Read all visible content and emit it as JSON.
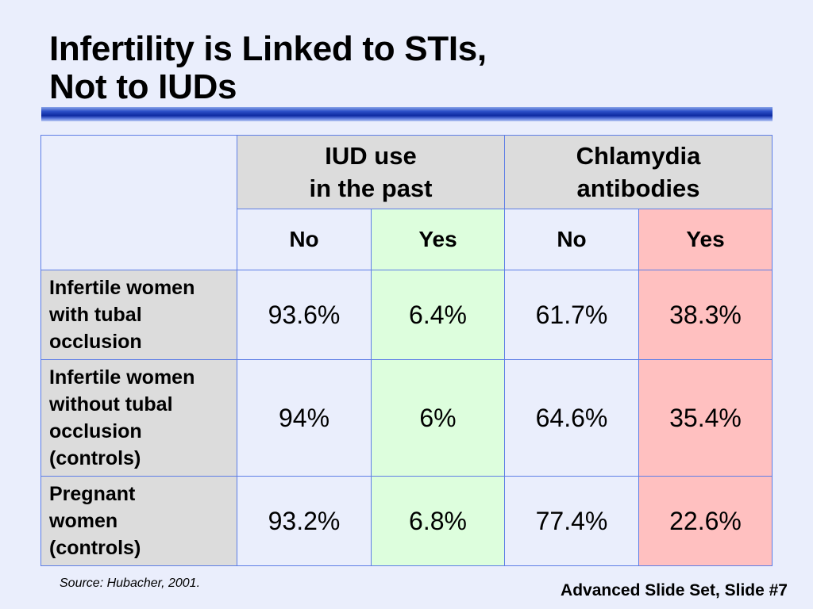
{
  "title": {
    "line1": "Infertility is Linked to STIs,",
    "line2": "Not to IUDs"
  },
  "table": {
    "groups": [
      {
        "line1": "IUD use",
        "line2": "in the past"
      },
      {
        "line1": "Chlamydia",
        "line2": "antibodies"
      }
    ],
    "subheaders": [
      "No",
      "Yes",
      "No",
      "Yes"
    ],
    "rows": [
      {
        "label_lines": [
          "Infertile women",
          "with tubal",
          "occlusion"
        ],
        "values": [
          "93.6%",
          "6.4%",
          "61.7%",
          "38.3%"
        ]
      },
      {
        "label_lines": [
          "Infertile women",
          "without tubal",
          "occlusion",
          "(controls)"
        ],
        "values": [
          "94%",
          "6%",
          "64.6%",
          "35.4%"
        ]
      },
      {
        "label_lines": [
          "Pregnant",
          "women",
          "(controls)"
        ],
        "values": [
          "93.2%",
          "6.8%",
          "77.4%",
          "22.6%"
        ]
      }
    ],
    "colors": {
      "border": "#5e7ee6",
      "header_gray": "#dcdcdc",
      "yes_iud_green": "#ddfedd",
      "yes_chlamydia_red": "#ffc0c0",
      "background": "#eaeefc"
    }
  },
  "footer": {
    "source": "Source: Hubacher, 2001.",
    "slide_ref": "Advanced Slide Set, Slide #7"
  }
}
